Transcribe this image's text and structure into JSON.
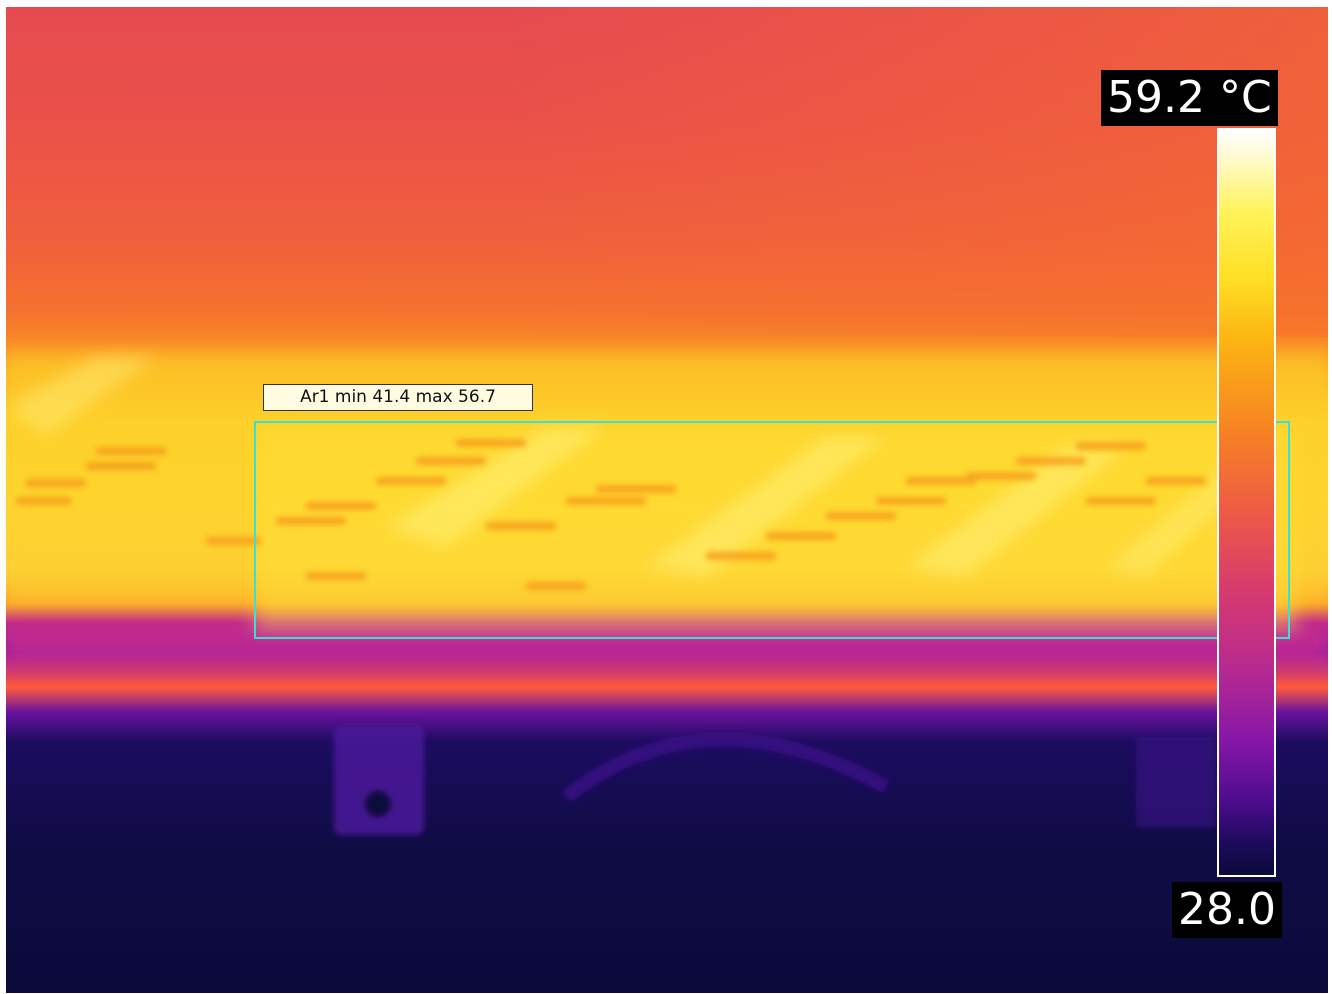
{
  "measurement": {
    "area_label": "Ar1 min 41.4 max 56.7",
    "area_name": "Ar1",
    "area_min": 41.4,
    "area_max": 56.7
  },
  "scale": {
    "max_label": "59.2 °C",
    "min_label": "28.0",
    "max_value": 59.2,
    "min_value": 28.0,
    "unit": "°C",
    "palette": "ironbow"
  },
  "colors": {
    "roi_outline": "#38e0d8",
    "label_background": "#fffbe0",
    "scale_text_background": "#000000",
    "scale_text": "#ffffff"
  }
}
